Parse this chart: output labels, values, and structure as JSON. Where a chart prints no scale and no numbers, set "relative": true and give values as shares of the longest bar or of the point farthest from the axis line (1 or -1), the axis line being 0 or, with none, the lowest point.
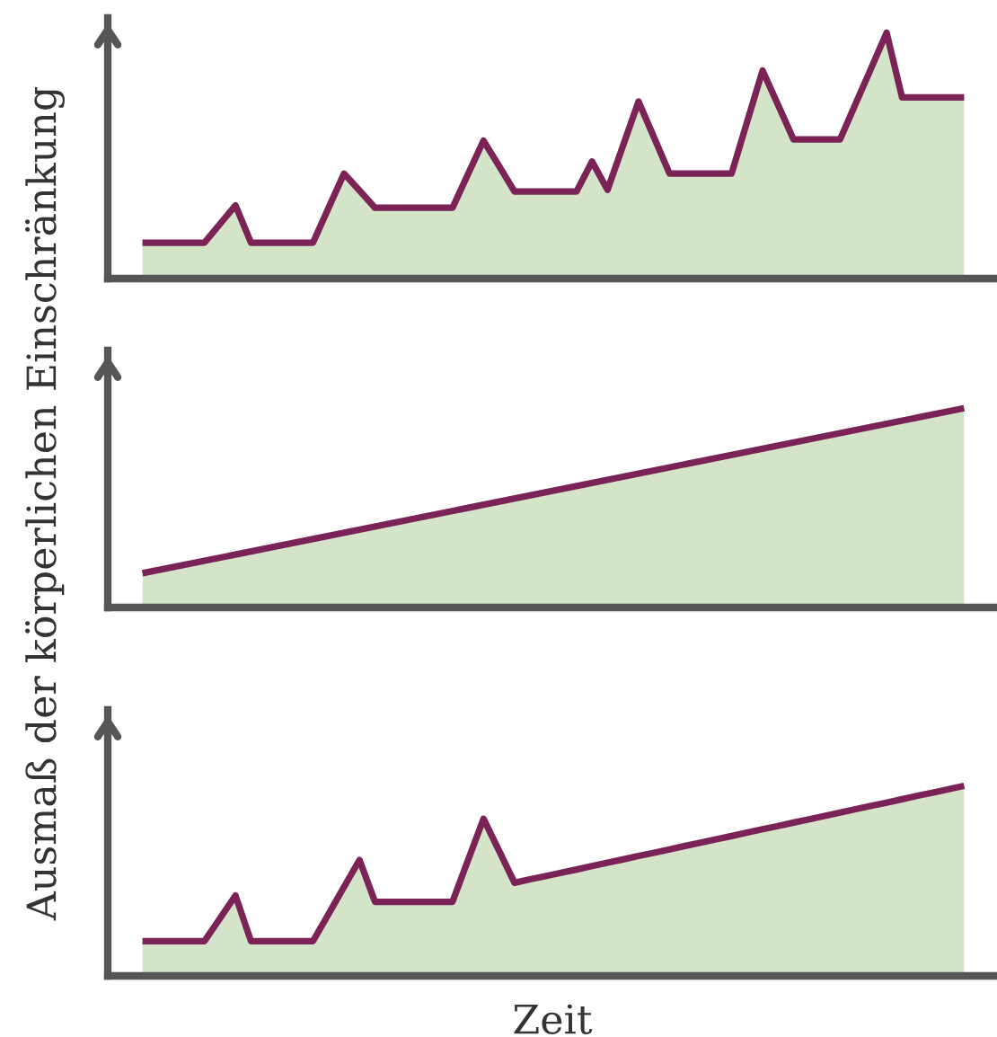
{
  "chart_data": [
    {
      "type": "area",
      "relative": true,
      "ylabel": "Ausmaß der körperlichen Einschränkung",
      "categories": [
        null,
        null,
        null,
        null,
        null,
        null,
        null,
        null,
        null,
        null,
        null,
        null,
        null,
        null,
        null,
        null,
        null,
        null,
        null,
        null,
        null,
        null,
        null,
        null,
        null,
        null,
        null,
        null,
        null,
        null,
        null,
        null,
        null,
        null,
        null,
        null,
        null,
        null,
        null,
        null,
        null,
        null,
        null,
        null,
        null,
        null,
        null,
        null,
        null,
        null,
        null,
        null,
        null,
        null
      ],
      "series": [
        {
          "color": "#7b2257",
          "values": [
            0.146,
            0.146,
            0.146,
            0.146,
            0.146,
            0.222,
            0.298,
            0.146,
            0.146,
            0.146,
            0.146,
            0.146,
            0.287,
            0.427,
            0.358,
            0.288,
            0.288,
            0.288,
            0.288,
            0.288,
            0.288,
            0.425,
            0.561,
            0.458,
            0.354,
            0.354,
            0.354,
            0.354,
            0.354,
            0.476,
            0.361,
            0.541,
            0.72,
            0.574,
            0.427,
            0.427,
            0.427,
            0.427,
            0.427,
            0.637,
            0.846,
            0.706,
            0.566,
            0.566,
            0.566,
            0.566,
            0.711,
            0.855,
            1,
            0.737,
            0.737,
            0.737,
            0.737,
            0.737
          ]
        }
      ]
    },
    {
      "type": "area",
      "relative": true,
      "categories": [
        null,
        null
      ],
      "series": [
        {
          "color": "#7b2257",
          "values": [
            0.172,
            1
          ]
        }
      ]
    },
    {
      "type": "area",
      "relative": true,
      "xlabel": "Zeit",
      "categories": [
        null,
        null,
        null,
        null,
        null,
        null,
        null,
        null,
        null,
        null,
        null,
        null,
        null,
        null,
        null,
        null,
        null,
        null,
        null,
        null,
        null,
        null,
        null,
        null,
        null,
        null,
        null,
        null,
        null,
        null,
        null,
        null,
        null,
        null,
        null,
        null,
        null,
        null,
        null,
        null,
        null,
        null,
        null,
        null,
        null,
        null,
        null,
        null,
        null,
        null,
        null,
        null,
        null,
        null
      ],
      "series": [
        {
          "color": "#7b2257",
          "values": [
            0.183,
            0.183,
            0.183,
            0.183,
            0.183,
            0.303,
            0.423,
            0.183,
            0.183,
            0.183,
            0.183,
            0.183,
            0.325,
            0.468,
            0.61,
            0.39,
            0.39,
            0.39,
            0.39,
            0.39,
            0.39,
            0.609,
            0.827,
            0.659,
            0.49,
            0.508,
            0.525,
            0.543,
            0.56,
            0.578,
            0.596,
            0.613,
            0.631,
            0.648,
            0.666,
            0.684,
            0.701,
            0.719,
            0.736,
            0.754,
            0.772,
            0.789,
            0.807,
            0.824,
            0.842,
            0.86,
            0.877,
            0.895,
            0.912,
            0.93,
            0.948,
            0.965,
            0.983,
            1
          ]
        }
      ]
    }
  ]
}
